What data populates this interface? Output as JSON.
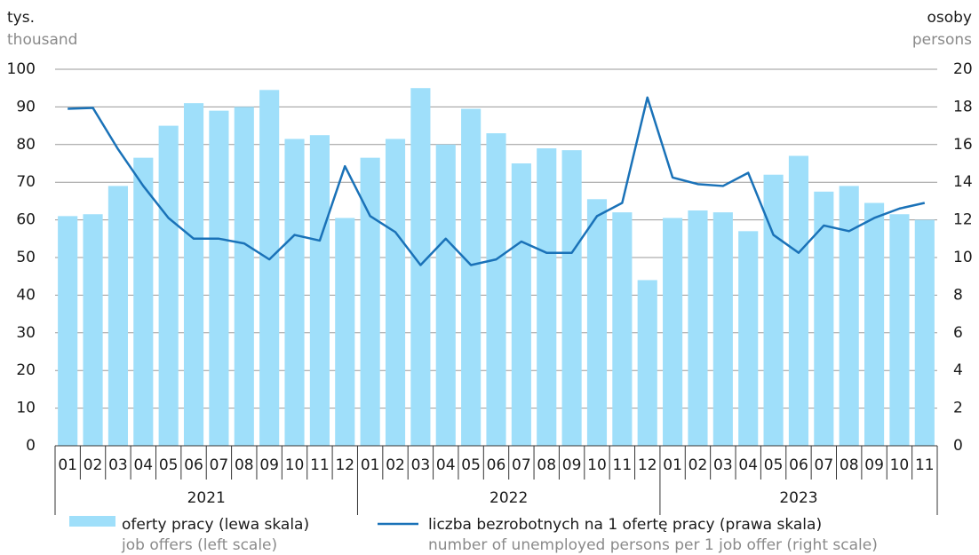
{
  "chart_data": {
    "type": "bar-line",
    "left_unit": [
      "tys.",
      "thousand"
    ],
    "right_unit": [
      "osoby",
      "persons"
    ],
    "categories": [
      "01",
      "02",
      "03",
      "04",
      "05",
      "06",
      "07",
      "08",
      "09",
      "10",
      "11",
      "12",
      "01",
      "02",
      "03",
      "04",
      "05",
      "06",
      "07",
      "08",
      "09",
      "10",
      "11",
      "12",
      "01",
      "02",
      "03",
      "04",
      "05",
      "06",
      "07",
      "08",
      "09",
      "10",
      "11"
    ],
    "year_groups": [
      "2021",
      "2022",
      "2023"
    ],
    "series": [
      {
        "name": "oferty pracy (lewa skala)",
        "subname": "job offers (left scale)",
        "color": "#9fdffa",
        "type": "bar",
        "axis": "y",
        "values": [
          61,
          61.5,
          69,
          76.5,
          85,
          91,
          89,
          90,
          94.5,
          81.5,
          82.5,
          60.5,
          76.5,
          81.5,
          95,
          80,
          89.5,
          83,
          75,
          79,
          78.5,
          65.5,
          62,
          44,
          60.5,
          62.5,
          62,
          57,
          72,
          77,
          67.5,
          69,
          64.5,
          61.5,
          60
        ]
      },
      {
        "name": "liczba bezrobotnych na 1 ofertę pracy (prawa skala)",
        "subname": "number of unemployed persons per 1 job offer (right scale)",
        "color": "#1a72b8",
        "type": "line",
        "axis": "y2",
        "values": [
          17.9,
          17.95,
          15.75,
          13.8,
          12.1,
          11.0,
          11.0,
          10.75,
          9.9,
          11.2,
          10.9,
          14.85,
          12.2,
          11.35,
          9.6,
          11.0,
          9.6,
          9.9,
          10.85,
          10.25,
          10.25,
          12.2,
          12.9,
          18.5,
          14.25,
          13.9,
          13.8,
          14.5,
          11.2,
          10.25,
          11.7,
          11.4,
          12.1,
          12.6,
          12.9
        ]
      }
    ],
    "ylim": [
      0,
      100
    ],
    "yticks": [
      0,
      10,
      20,
      30,
      40,
      50,
      60,
      70,
      80,
      90,
      100
    ],
    "y2lim": [
      0,
      20
    ],
    "y2ticks": [
      0,
      2,
      4,
      6,
      8,
      10,
      12,
      14,
      16,
      18,
      20
    ],
    "grid": true
  }
}
